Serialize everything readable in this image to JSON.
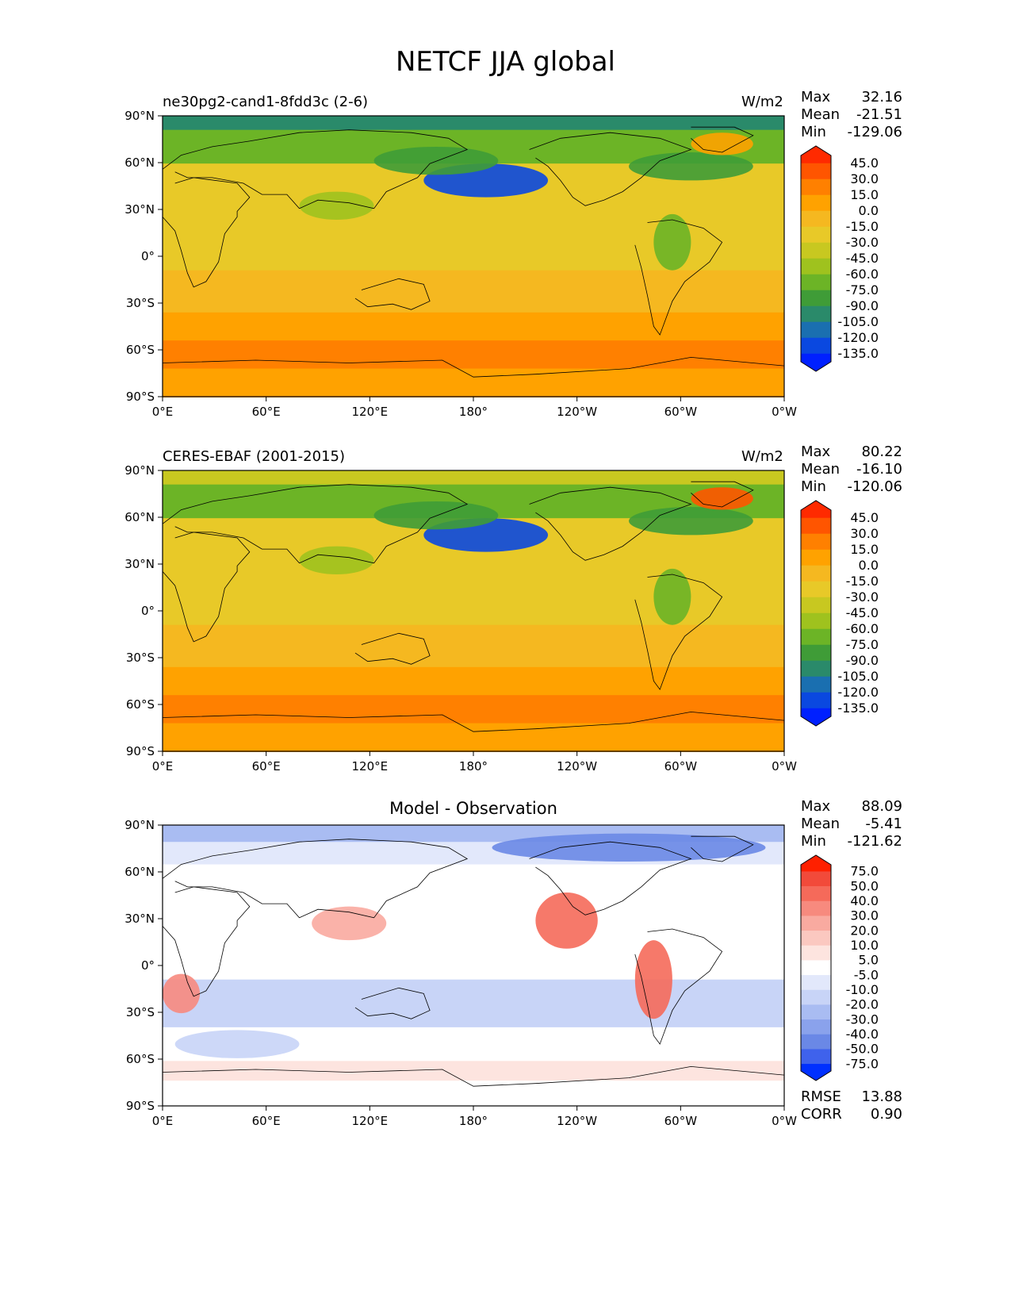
{
  "title": "NETCF JJA global",
  "panels": [
    {
      "id": "test",
      "left_title": "ne30pg2-cand1-8fdd3c (2-6)",
      "center_title": "",
      "units": "W/m2",
      "stats": {
        "max_label": "Max",
        "max": "32.16",
        "mean_label": "Mean",
        "mean": "-21.51",
        "min_label": "Min",
        "min": "-129.06"
      },
      "colorbar_levels": [
        "45.0",
        "30.0",
        "15.0",
        "0.0",
        "-15.0",
        "-30.0",
        "-45.0",
        "-60.0",
        "-75.0",
        "-90.0",
        "-105.0",
        "-120.0",
        "-135.0"
      ],
      "colorbar_colors": [
        "#ff2a00",
        "#ff5500",
        "#ff8000",
        "#ffa200",
        "#f5b820",
        "#e8c928",
        "#c8c820",
        "#9fc21e",
        "#6cb426",
        "#3f9c37",
        "#2a8a6a",
        "#1a6fb0",
        "#0a48e0",
        "#0020ff"
      ]
    },
    {
      "id": "reference",
      "left_title": "CERES-EBAF (2001-2015)",
      "center_title": "",
      "units": "W/m2",
      "stats": {
        "max_label": "Max",
        "max": "80.22",
        "mean_label": "Mean",
        "mean": "-16.10",
        "min_label": "Min",
        "min": "-120.06"
      },
      "colorbar_levels": [
        "45.0",
        "30.0",
        "15.0",
        "0.0",
        "-15.0",
        "-30.0",
        "-45.0",
        "-60.0",
        "-75.0",
        "-90.0",
        "-105.0",
        "-120.0",
        "-135.0"
      ],
      "colorbar_colors": [
        "#ff2a00",
        "#ff5500",
        "#ff8000",
        "#ffa200",
        "#f5b820",
        "#e8c928",
        "#c8c820",
        "#9fc21e",
        "#6cb426",
        "#3f9c37",
        "#2a8a6a",
        "#1a6fb0",
        "#0a48e0",
        "#0020ff"
      ]
    },
    {
      "id": "diff",
      "left_title": "",
      "center_title": "Model - Observation",
      "units": "",
      "stats": {
        "max_label": "Max",
        "max": "88.09",
        "mean_label": "Mean",
        "mean": "-5.41",
        "min_label": "Min",
        "min": "-121.62"
      },
      "colorbar_levels": [
        "75.0",
        "50.0",
        "40.0",
        "30.0",
        "20.0",
        "10.0",
        "5.0",
        "-5.0",
        "-10.0",
        "-20.0",
        "-30.0",
        "-40.0",
        "-50.0",
        "-75.0"
      ],
      "colorbar_colors": [
        "#ff2000",
        "#f24a3a",
        "#f56a5a",
        "#f78a7e",
        "#f9aaa0",
        "#fbc8c0",
        "#fde4df",
        "#ffffff",
        "#e2e8fb",
        "#c8d4f7",
        "#a9bcf2",
        "#8aa2ec",
        "#6a88e6",
        "#3f62ec",
        "#0030ff"
      ],
      "rmse_label": "RMSE",
      "rmse": "13.88",
      "corr_label": "CORR",
      "corr": "0.90"
    }
  ],
  "axes": {
    "lat_ticks": [
      "90°N",
      "60°N",
      "30°N",
      "0°",
      "30°S",
      "60°S",
      "90°S"
    ],
    "lon_ticks": [
      "0°E",
      "60°E",
      "120°E",
      "180°",
      "120°W",
      "60°W",
      "0°W"
    ]
  }
}
